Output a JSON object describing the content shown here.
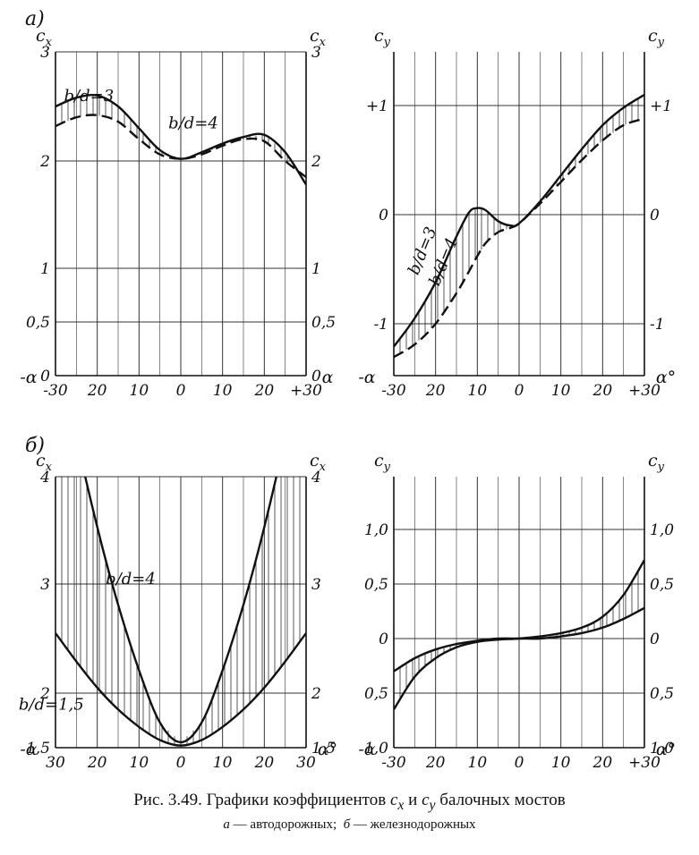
{
  "panel_labels": [
    "a)",
    "б)"
  ],
  "caption": {
    "prefix": "Рис. 3.49. Графики коэффициентов",
    "var1": "c",
    "var1_sub": "x",
    "mid": "и",
    "var2": "c",
    "var2_sub": "y",
    "suffix": "балочных мостов",
    "sub_a_letter": "а",
    "sub_a_text": "— автодорожных;",
    "sub_b_letter": "б",
    "sub_b_text": "— железнодорожных"
  },
  "colors": {
    "ink": "#111111",
    "grid": "#333333",
    "paper": "#ffffff"
  },
  "chart_data": [
    {
      "id": "a-cx",
      "type": "area",
      "ylabel_left": "cx",
      "ylabel_right": "cx",
      "x_left_label": "-α",
      "x_right_label": "α",
      "xticks": [
        "-30",
        "20",
        "10",
        "0",
        "10",
        "20",
        "+30"
      ],
      "x_ticks_values": [
        -30,
        -20,
        -10,
        0,
        10,
        20,
        30
      ],
      "yticks": [
        "0",
        "0,5",
        "1",
        "2",
        "3"
      ],
      "ytick_values": [
        0,
        0.5,
        1,
        2,
        3
      ],
      "yticks_right": [
        "0",
        "0,5",
        "1",
        "2",
        "3"
      ],
      "ylim": [
        0,
        3
      ],
      "xlim": [
        -30,
        30
      ],
      "grid": true,
      "annotations": [
        {
          "text": "b/d=3",
          "x": -22,
          "y": 2.55
        },
        {
          "text": "b/d=4",
          "x": 3,
          "y": 2.3
        }
      ],
      "series": [
        {
          "label": "b/d=3",
          "style": "solid",
          "x": [
            -30,
            -25,
            -20,
            -15,
            -10,
            -5,
            0,
            5,
            10,
            15,
            20,
            25,
            30
          ],
          "y": [
            2.5,
            2.58,
            2.6,
            2.5,
            2.3,
            2.1,
            2.02,
            2.08,
            2.16,
            2.22,
            2.24,
            2.08,
            1.78
          ]
        },
        {
          "label": "b/d=4",
          "style": "dashed",
          "x": [
            -30,
            -25,
            -20,
            -15,
            -10,
            -5,
            0,
            5,
            10,
            15,
            20,
            25,
            30
          ],
          "y": [
            2.32,
            2.4,
            2.42,
            2.36,
            2.2,
            2.06,
            2.02,
            2.06,
            2.14,
            2.2,
            2.18,
            2.0,
            1.85
          ]
        }
      ],
      "hatch_between": true
    },
    {
      "id": "a-cy",
      "type": "area",
      "ylabel_left": "cy",
      "ylabel_right": "cy",
      "x_left_label": "-α",
      "x_right_label": "α°",
      "xticks": [
        "-30",
        "20",
        "10",
        "0",
        "10",
        "20",
        "+30"
      ],
      "x_ticks_values": [
        -30,
        -20,
        -10,
        0,
        10,
        20,
        30
      ],
      "yticks": [
        "-1",
        "0",
        "+1"
      ],
      "ytick_values": [
        -1,
        0,
        1
      ],
      "yticks_right": [
        "-1",
        "0",
        "+1"
      ],
      "ylim": [
        -1.5,
        1.5
      ],
      "xlim": [
        -30,
        30
      ],
      "grid": true,
      "annotations": [
        {
          "text": "b/d=3",
          "x": -22,
          "y": -0.35
        },
        {
          "text": "b/d=4",
          "x": -17,
          "y": -0.45
        }
      ],
      "series": [
        {
          "label": "b/d=3",
          "style": "solid",
          "x": [
            -30,
            -25,
            -20,
            -15,
            -12,
            -10,
            -8,
            -5,
            -2,
            0,
            5,
            10,
            15,
            20,
            25,
            30
          ],
          "y": [
            -1.22,
            -0.95,
            -0.62,
            -0.2,
            0.02,
            0.06,
            0.04,
            -0.06,
            -0.1,
            -0.08,
            0.12,
            0.36,
            0.6,
            0.82,
            0.98,
            1.1
          ]
        },
        {
          "label": "b/d=4",
          "style": "dashed",
          "x": [
            -30,
            -25,
            -20,
            -15,
            -12,
            -10,
            -8,
            -5,
            -2,
            0,
            5,
            10,
            15,
            20,
            25,
            30
          ],
          "y": [
            -1.32,
            -1.2,
            -1.0,
            -0.72,
            -0.52,
            -0.38,
            -0.26,
            -0.16,
            -0.12,
            -0.08,
            0.1,
            0.3,
            0.5,
            0.68,
            0.82,
            0.88
          ]
        }
      ],
      "hatch_between": true
    },
    {
      "id": "b-cx",
      "type": "area",
      "ylabel_left": "cx",
      "ylabel_right": "cx",
      "x_left_label": "-α",
      "x_right_label": "α°",
      "xticks": [
        "30",
        "20",
        "10",
        "0",
        "10",
        "20",
        "30"
      ],
      "x_ticks_values": [
        -30,
        -20,
        -10,
        0,
        10,
        20,
        30
      ],
      "yticks": [
        "1,5",
        "2",
        "3",
        "4"
      ],
      "ytick_values": [
        1.5,
        2,
        3,
        4
      ],
      "yticks_right": [
        "1,5",
        "2",
        "3",
        "4"
      ],
      "ylim": [
        1.5,
        4
      ],
      "xlim": [
        -30,
        30
      ],
      "grid": true,
      "annotations": [
        {
          "text": "b/d=4",
          "x": -12,
          "y": 3.0
        },
        {
          "text": "b/d=1,5",
          "x": -31,
          "y": 1.85
        }
      ],
      "series": [
        {
          "label": "b/d=4",
          "style": "solid",
          "x": [
            -30,
            -25,
            -20,
            -15,
            -10,
            -5,
            0,
            5,
            10,
            15,
            20,
            25,
            30
          ],
          "y": [
            5.33,
            4.37,
            3.53,
            2.81,
            2.21,
            1.73,
            1.55,
            1.73,
            2.21,
            2.81,
            3.53,
            4.37,
            5.33
          ]
        },
        {
          "label": "b/d=1,5",
          "style": "solid",
          "x": [
            -30,
            -25,
            -20,
            -15,
            -10,
            -5,
            0,
            5,
            10,
            15,
            20,
            25,
            30
          ],
          "y": [
            2.55,
            2.29,
            2.05,
            1.85,
            1.69,
            1.57,
            1.52,
            1.57,
            1.69,
            1.85,
            2.05,
            2.29,
            2.55
          ]
        }
      ],
      "hatch_between": true
    },
    {
      "id": "b-cy",
      "type": "area",
      "ylabel_left": "cy",
      "ylabel_right": "cy",
      "x_left_label": "-α",
      "x_right_label": "α°",
      "xticks": [
        "-30",
        "20",
        "10",
        "0",
        "10",
        "20",
        "+30"
      ],
      "x_ticks_values": [
        -30,
        -20,
        -10,
        0,
        10,
        20,
        30
      ],
      "yticks": [
        "1,0",
        "0,5",
        "0",
        "0,5",
        "1,0"
      ],
      "ytick_values": [
        1,
        0.5,
        0,
        -0.5,
        -1
      ],
      "yticks_right": [
        "1,0",
        "0,5",
        "0",
        "0,5",
        "1,0"
      ],
      "ylim": [
        -1,
        1.5
      ],
      "xlim": [
        -30,
        30
      ],
      "grid": true,
      "annotations": [],
      "series": [
        {
          "label": "",
          "style": "solid",
          "x": [
            -30,
            -25,
            -20,
            -15,
            -10,
            -5,
            0,
            5,
            10,
            15,
            20,
            25,
            30
          ],
          "y": [
            -0.3,
            -0.18,
            -0.1,
            -0.05,
            -0.02,
            0,
            0,
            0,
            0.02,
            0.05,
            0.1,
            0.18,
            0.28
          ]
        },
        {
          "label": "",
          "style": "solid",
          "x": [
            -30,
            -25,
            -20,
            -15,
            -10,
            -5,
            0,
            5,
            10,
            15,
            20,
            25,
            30
          ],
          "y": [
            -0.65,
            -0.35,
            -0.18,
            -0.08,
            -0.03,
            -0.01,
            0,
            0.02,
            0.05,
            0.1,
            0.2,
            0.4,
            0.72
          ]
        }
      ],
      "hatch_between": true
    }
  ]
}
